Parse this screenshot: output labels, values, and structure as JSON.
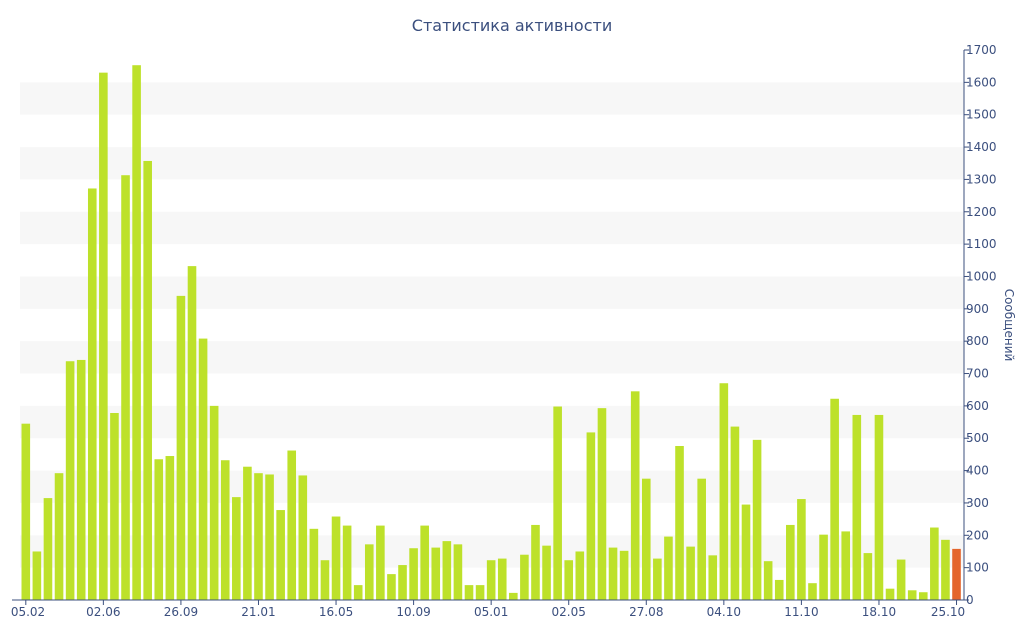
{
  "chart_data": {
    "type": "bar",
    "title": "Статистика активности",
    "xlabel": "",
    "ylabel": "Сообщений",
    "y_axis_position": "right",
    "ylim": [
      0,
      1700
    ],
    "y_ticks": [
      0,
      100,
      200,
      300,
      400,
      500,
      600,
      700,
      800,
      900,
      1000,
      1100,
      1200,
      1300,
      1400,
      1500,
      1600,
      1700
    ],
    "grid": "alternating horizontal bands",
    "x_tick_labels": [
      "05.02",
      "02.06",
      "26.09",
      "21.01",
      "16.05",
      "10.09",
      "05.01",
      "02.05",
      "27.08",
      "04.10",
      "11.10",
      "18.10",
      "25.10"
    ],
    "x_tick_label_bar_index": [
      0,
      7,
      14,
      21,
      28,
      35,
      42,
      49,
      56,
      63,
      70,
      77,
      84
    ],
    "values": [
      545,
      150,
      315,
      392,
      738,
      742,
      1272,
      1630,
      578,
      1313,
      1653,
      1357,
      435,
      445,
      940,
      1032,
      808,
      600,
      432,
      318,
      412,
      392,
      388,
      278,
      462,
      385,
      220,
      123,
      258,
      230,
      46,
      172,
      230,
      80,
      108,
      160,
      230,
      162,
      182,
      172,
      46,
      46,
      123,
      128,
      22,
      140,
      232,
      168,
      598,
      123,
      150,
      518,
      593,
      162,
      152,
      645,
      375,
      128,
      196,
      476,
      165,
      375,
      138,
      670,
      536,
      295,
      495,
      120,
      62,
      232,
      312,
      52,
      202,
      622,
      212,
      572,
      145,
      572,
      35,
      125,
      30,
      24,
      224,
      186,
      158
    ],
    "highlight_index": 84,
    "colors": {
      "bar": "#bde12a",
      "highlight": "#e4652d",
      "band": "#f7f7f7",
      "axis": "#3b4f7e",
      "text": "#3b4f7e"
    }
  }
}
